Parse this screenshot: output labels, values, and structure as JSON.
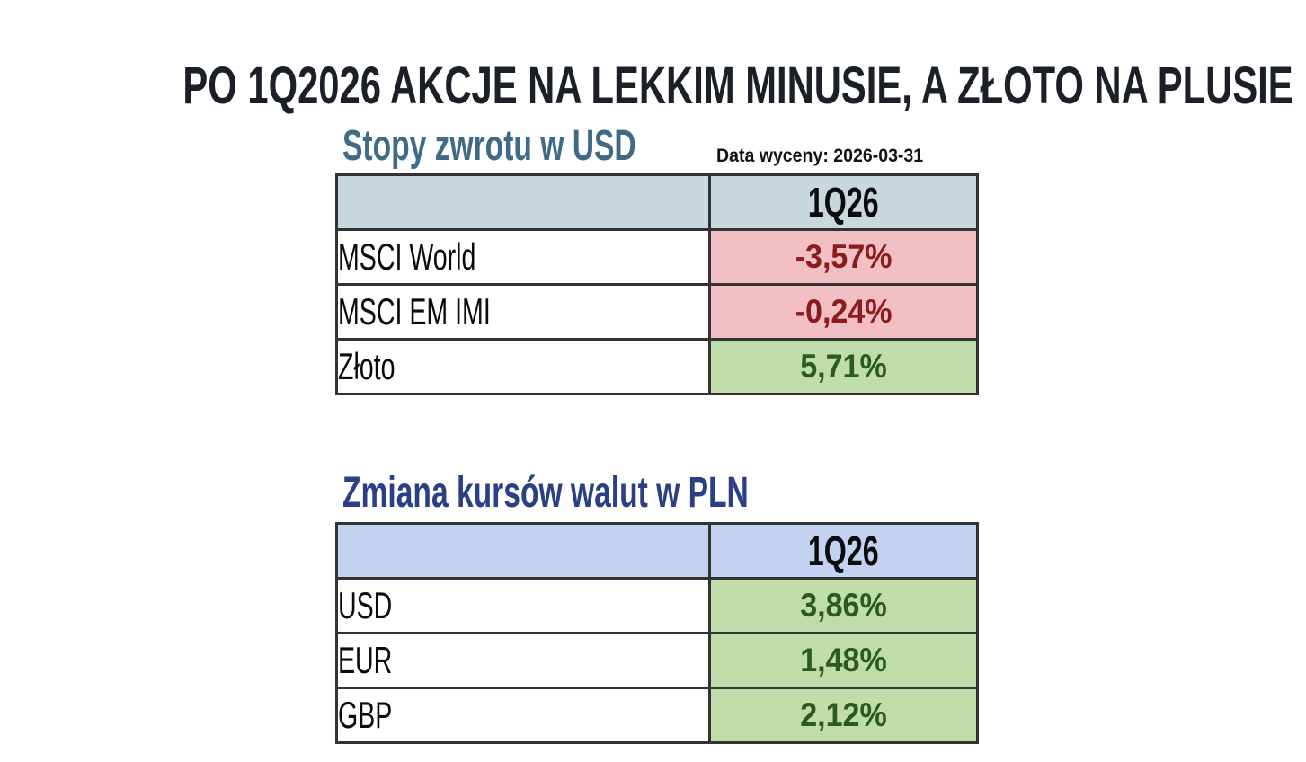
{
  "title": "PO 1Q2026 AKCJE NA LEKKIM MINUSIE, A ZŁOTO NA PLUSIE",
  "colors": {
    "title": "#1b1f27",
    "section1_title": "#3f6b87",
    "section2_title": "#2b3f86",
    "section1_header_bg": "#c8d8dc",
    "section2_header_bg": "#c3d2f1",
    "negative_bg": "#f2bfc4",
    "negative_text": "#8c1c1c",
    "positive_bg": "#c1dcab",
    "positive_text": "#2b5a1e",
    "border": "#333333"
  },
  "returns_usd": {
    "title": "Stopy zwrotu w USD",
    "valuation_date": "Data wyceny: 2026-03-31",
    "header": {
      "label": "",
      "period": "1Q26"
    },
    "rows": [
      {
        "label": "MSCI World",
        "value": "-3,57%",
        "sign": "negative"
      },
      {
        "label": "MSCI EM IMI",
        "value": "-0,24%",
        "sign": "negative"
      },
      {
        "label": "Złoto",
        "value": "5,71%",
        "sign": "positive"
      }
    ]
  },
  "fx_pln": {
    "title": "Zmiana kursów walut w PLN",
    "header": {
      "label": "",
      "period": "1Q26"
    },
    "rows": [
      {
        "label": "USD",
        "value": "3,86%",
        "sign": "positive"
      },
      {
        "label": "EUR",
        "value": "1,48%",
        "sign": "positive"
      },
      {
        "label": "GBP",
        "value": "2,12%",
        "sign": "positive"
      }
    ]
  }
}
